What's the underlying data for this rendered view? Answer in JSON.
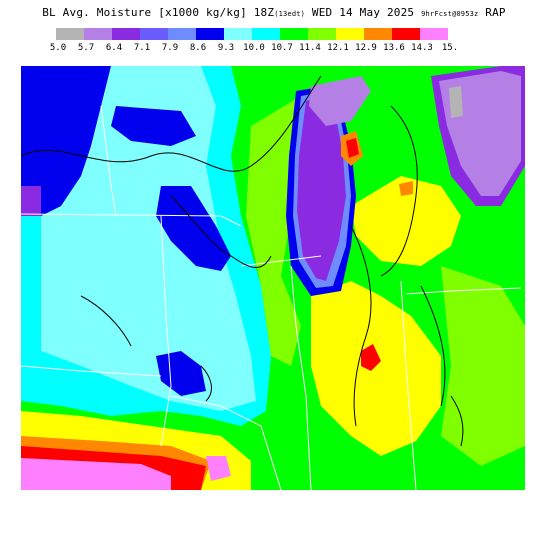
{
  "header": {
    "title_main": "BL Avg. Moisture [x1000 kg/kg] 18Z",
    "title_init": "(13edt)",
    "title_date": " WED 14 May 2025 ",
    "title_run": "9hrFcst@0953z",
    "title_model": " RAP"
  },
  "legend": {
    "colors": [
      "#b4b4b4",
      "#b480e6",
      "#8a2be2",
      "#6a5cff",
      "#6f8cff",
      "#0000ee",
      "#80ffff",
      "#00ffff",
      "#00ff00",
      "#80ff00",
      "#ffff00",
      "#ff8800",
      "#ff0000",
      "#ff80ff"
    ],
    "labels": [
      "5.0",
      "5.7",
      "6.4",
      "7.1",
      "7.9",
      "8.6",
      "9.3",
      "10.0",
      "10.7",
      "11.4",
      "12.1",
      "12.9",
      "13.6",
      "14.3",
      "15."
    ]
  },
  "map": {
    "region": "Upper Midwest / Great Lakes",
    "colors": {
      "gray": "#b4b4b4",
      "lavender": "#b480e6",
      "purple": "#8a2be2",
      "blue_violet": "#6a5cff",
      "periwinkle": "#6f8cff",
      "blue": "#0000ee",
      "light_cyan": "#80ffff",
      "cyan": "#00ffff",
      "green": "#00ff00",
      "yellow_green": "#80ff00",
      "yellow": "#ffff00",
      "orange": "#ff8800",
      "red": "#ff0000",
      "pink": "#ff80ff"
    }
  }
}
